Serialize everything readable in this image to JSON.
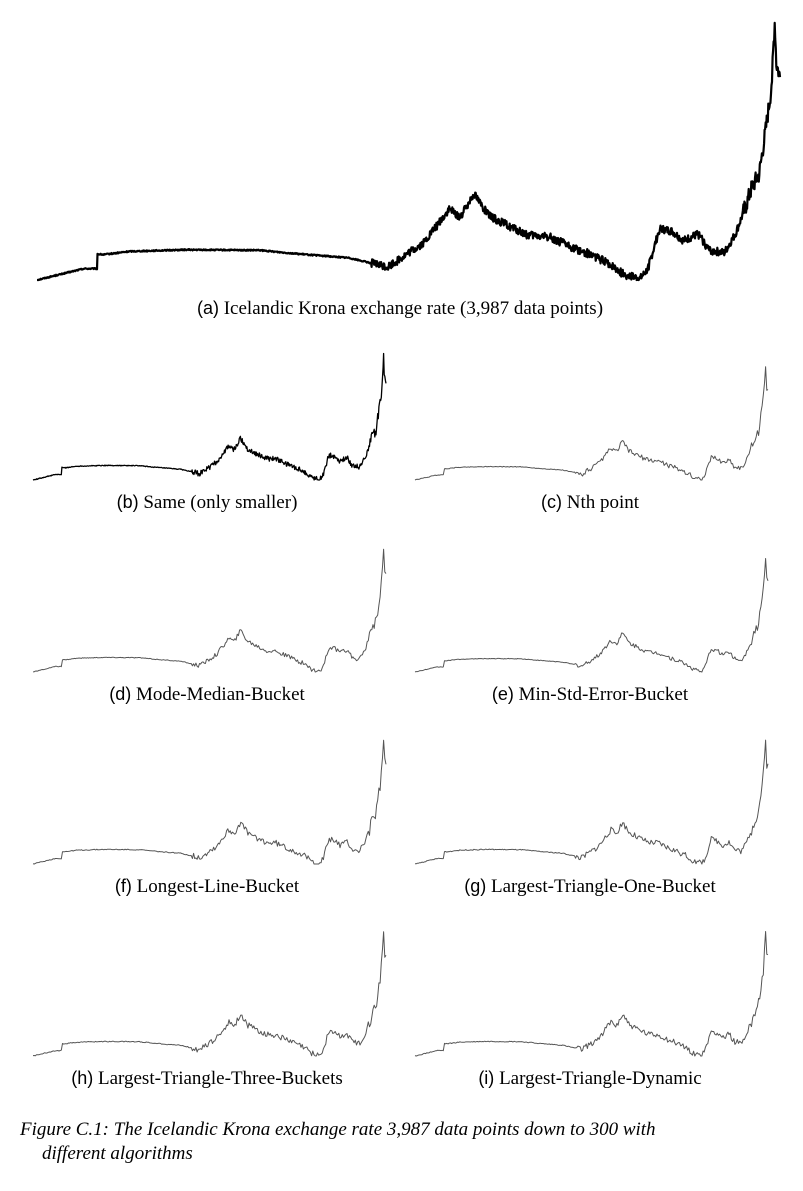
{
  "figure": {
    "caption_line1": "Figure C.1: The Icelandic Krona exchange rate 3,987 data points down to 300 with",
    "caption_line2": "different algorithms"
  },
  "colors": {
    "full": "#000000",
    "downsampled": "#555555"
  },
  "chart_data": [
    {
      "type": "line",
      "id": "a",
      "label": "(a)",
      "title": "Icelandic Krona exchange rate (3,987 data points)",
      "axes_visible": false,
      "grid": false,
      "series": [
        {
          "points": 3987
        }
      ]
    },
    {
      "type": "line",
      "id": "b",
      "label": "(b)",
      "title": "Same (only smaller)",
      "axes_visible": false,
      "grid": false
    },
    {
      "type": "line",
      "id": "c",
      "label": "(c)",
      "title": "Nth point",
      "axes_visible": false,
      "grid": false
    },
    {
      "type": "line",
      "id": "d",
      "label": "(d)",
      "title": "Mode-Median-Bucket",
      "axes_visible": false,
      "grid": false
    },
    {
      "type": "line",
      "id": "e",
      "label": "(e)",
      "title": "Min-Std-Error-Bucket",
      "axes_visible": false,
      "grid": false
    },
    {
      "type": "line",
      "id": "f",
      "label": "(f)",
      "title": "Longest-Line-Bucket",
      "axes_visible": false,
      "grid": false
    },
    {
      "type": "line",
      "id": "g",
      "label": "(g)",
      "title": "Largest-Triangle-One-Bucket",
      "axes_visible": false,
      "grid": false
    },
    {
      "type": "line",
      "id": "h",
      "label": "(h)",
      "title": "Largest-Triangle-Three-Buckets",
      "axes_visible": false,
      "grid": false
    },
    {
      "type": "line",
      "id": "i",
      "label": "(i)",
      "title": "Largest-Triangle-Dynamic",
      "axes_visible": false,
      "grid": false
    }
  ]
}
